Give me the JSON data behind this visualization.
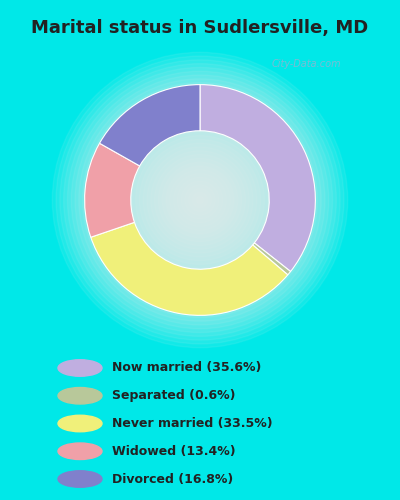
{
  "title": "Marital status in Sudlersville, MD",
  "title_fontsize": 13,
  "categories": [
    "Now married",
    "Separated",
    "Never married",
    "Widowed",
    "Divorced"
  ],
  "values": [
    35.6,
    0.6,
    33.5,
    13.4,
    16.8
  ],
  "pie_order_values": [
    35.6,
    0.6,
    33.5,
    13.4,
    16.8
  ],
  "pie_colors": [
    "#c0aee0",
    "#b8c89a",
    "#f0f07a",
    "#f0a0a8",
    "#8080cc"
  ],
  "legend_labels": [
    "Now married (35.6%)",
    "Separated (0.6%)",
    "Never married (33.5%)",
    "Widowed (13.4%)",
    "Divorced (16.8%)"
  ],
  "legend_colors": [
    "#c0aee0",
    "#b8c89a",
    "#f0f07a",
    "#f0a0a8",
    "#8080cc"
  ],
  "bg_chart_outer": "#c8e8c8",
  "bg_chart_inner": "#e8f5e8",
  "bg_title": "#00e8e8",
  "bg_legend": "#00e8e8",
  "watermark": "City-Data.com",
  "donut_width": 0.4,
  "fig_width": 4.0,
  "fig_height": 5.0,
  "startangle": 90
}
